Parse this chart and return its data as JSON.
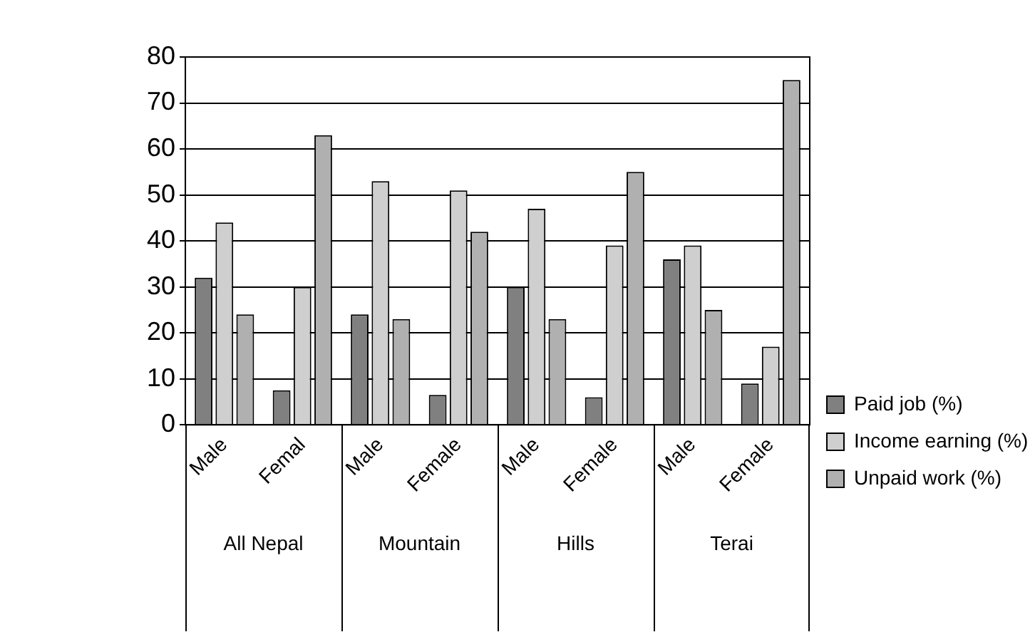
{
  "chart_data": {
    "type": "bar",
    "categories": [
      "Male",
      "Femal",
      "Male",
      "Female",
      "Male",
      "Female",
      "Male",
      "Female"
    ],
    "series": [
      {
        "name": "Paid job (%)",
        "color": "#808080",
        "values": [
          32,
          7.5,
          24,
          6.5,
          30,
          6,
          36,
          9
        ]
      },
      {
        "name": "Income earning (%)",
        "color": "#cfcfcf",
        "values": [
          44,
          30,
          53,
          51,
          47,
          39,
          39,
          17
        ]
      },
      {
        "name": "Unpaid work (%)",
        "color": "#b0b0b0",
        "values": [
          24,
          63,
          23,
          42,
          23,
          55,
          25,
          75
        ]
      }
    ],
    "annotations": [
      "All Nepal",
      "Mountain",
      "Hills",
      "Terai"
    ],
    "ylim": [
      0,
      80
    ],
    "yticks": [
      0,
      10,
      20,
      30,
      40,
      50,
      60,
      70,
      80
    ],
    "grid": "y",
    "legend": "bottom right"
  }
}
